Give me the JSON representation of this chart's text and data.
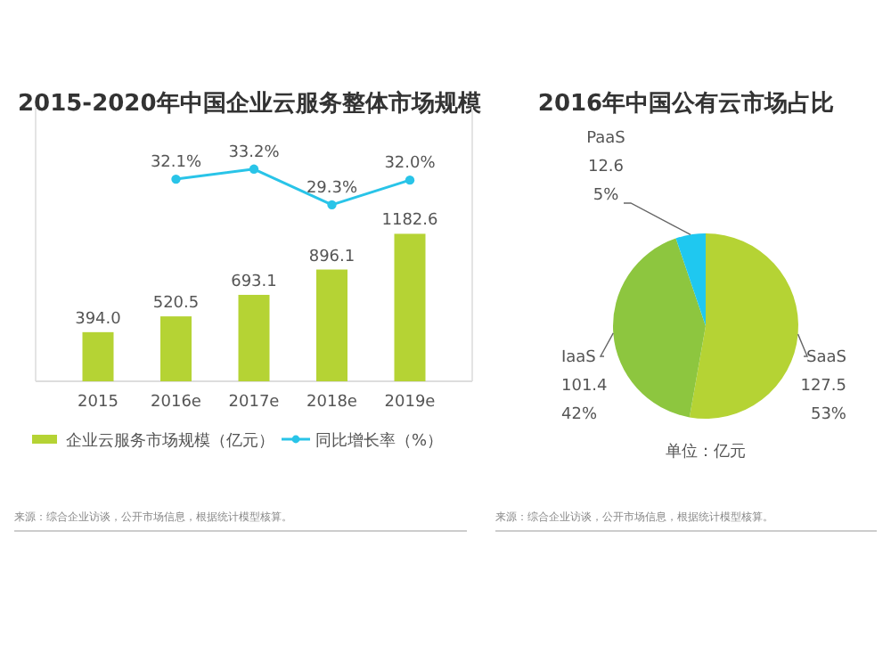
{
  "chart_data": [
    {
      "type": "bar",
      "title": "2015-2020年中国企业云服务整体市场规模",
      "categories": [
        "2015",
        "2016e",
        "2017e",
        "2018e",
        "2019e"
      ],
      "series": [
        {
          "name": "企业云服务市场规模（亿元）",
          "type": "bar",
          "color": "#b5d334",
          "values": [
            394.0,
            520.5,
            693.1,
            896.1,
            1182.6
          ],
          "value_labels": [
            "394.0",
            "520.5",
            "693.1",
            "896.1",
            "1182.6"
          ]
        },
        {
          "name": "同比增长率（%）",
          "type": "line",
          "axis": "y2",
          "color": "#29c4e8",
          "values": [
            null,
            32.1,
            33.2,
            29.3,
            32.0
          ],
          "value_labels": [
            null,
            "32.1%",
            "33.2%",
            "29.3%",
            "32.0%"
          ]
        }
      ],
      "ylim": [
        0,
        2200
      ],
      "y2lim": [
        10,
        40
      ],
      "tick_labels": "x",
      "data_labels": true,
      "marker": "circle",
      "legend": "bottom",
      "grid": false,
      "annotations": [
        "来源：综合企业访谈，公开市场信息，根据统计模型核算。"
      ]
    },
    {
      "type": "pie",
      "title": "2016年中国公有云市场占比",
      "categories": [
        "SaaS",
        "IaaS",
        "PaaS"
      ],
      "values": [
        127.5,
        101.4,
        12.6
      ],
      "colors": [
        "#b5d334",
        "#8dc63f",
        "#1fc8f0"
      ],
      "value_labels": [
        "127.5\n53%",
        "101.4\n42%",
        "12.6\n5%"
      ],
      "annotations": [
        "单位：亿元",
        "来源：综合企业访谈，公开市场信息，根据统计模型核算。"
      ]
    }
  ]
}
